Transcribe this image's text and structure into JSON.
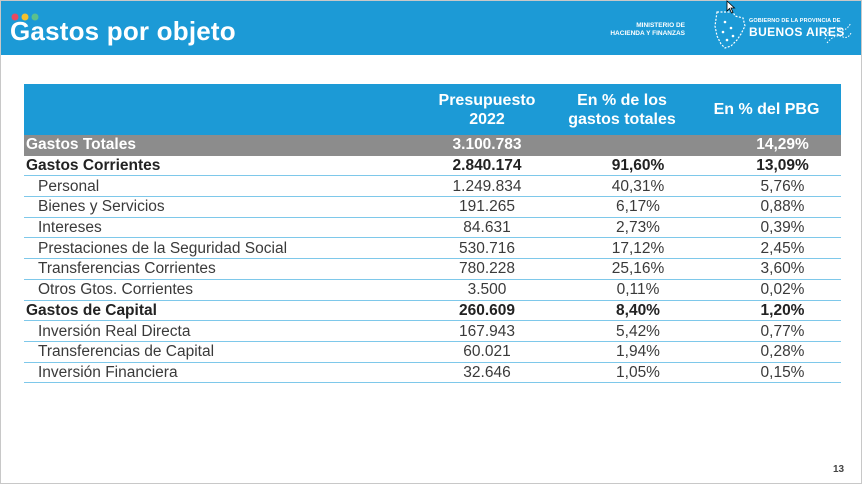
{
  "header": {
    "title": "Gastos por objeto",
    "ministry_line1": "MINISTERIO DE",
    "ministry_line2": "HACIENDA Y FINANZAS",
    "gov_small": "GOBIERNO DE LA PROVINCIA DE",
    "gov_big": "BUENOS AIRES",
    "background_color": "#1c9ad6",
    "dot_colors": [
      "#e84a5f",
      "#f2c12e",
      "#5cc08c"
    ]
  },
  "table": {
    "columns": [
      "",
      "Presupuesto 2022",
      "En % de los gastos totales",
      "En % del PBG"
    ],
    "rows": [
      {
        "kind": "total",
        "label": "Gastos Totales",
        "presupuesto": "3.100.783",
        "pct_gastos": "",
        "pct_pbg": "14,29%"
      },
      {
        "kind": "section",
        "label": "Gastos Corrientes",
        "presupuesto": "2.840.174",
        "pct_gastos": "91,60%",
        "pct_pbg": "13,09%"
      },
      {
        "kind": "sub",
        "label": "Personal",
        "presupuesto": "1.249.834",
        "pct_gastos": "40,31%",
        "pct_pbg": "5,76%"
      },
      {
        "kind": "sub",
        "label": "Bienes y Servicios",
        "presupuesto": "191.265",
        "pct_gastos": "6,17%",
        "pct_pbg": "0,88%"
      },
      {
        "kind": "sub",
        "label": "Intereses",
        "presupuesto": "84.631",
        "pct_gastos": "2,73%",
        "pct_pbg": "0,39%"
      },
      {
        "kind": "sub",
        "label": "Prestaciones de la Seguridad Social",
        "presupuesto": "530.716",
        "pct_gastos": "17,12%",
        "pct_pbg": "2,45%"
      },
      {
        "kind": "sub",
        "label": "Transferencias Corrientes",
        "presupuesto": "780.228",
        "pct_gastos": "25,16%",
        "pct_pbg": "3,60%"
      },
      {
        "kind": "sub",
        "label": "Otros Gtos. Corrientes",
        "presupuesto": "3.500",
        "pct_gastos": "0,11%",
        "pct_pbg": "0,02%"
      },
      {
        "kind": "section",
        "label": "Gastos de Capital",
        "presupuesto": "260.609",
        "pct_gastos": "8,40%",
        "pct_pbg": "1,20%"
      },
      {
        "kind": "sub",
        "label": "Inversión Real Directa",
        "presupuesto": "167.943",
        "pct_gastos": "5,42%",
        "pct_pbg": "0,77%"
      },
      {
        "kind": "sub",
        "label": "Transferencias de Capital",
        "presupuesto": "60.021",
        "pct_gastos": "1,94%",
        "pct_pbg": "0,28%"
      },
      {
        "kind": "sub",
        "label": "Inversión Financiera",
        "presupuesto": "32.646",
        "pct_gastos": "1,05%",
        "pct_pbg": "0,15%"
      }
    ]
  },
  "footer": {
    "page_number": "13"
  }
}
